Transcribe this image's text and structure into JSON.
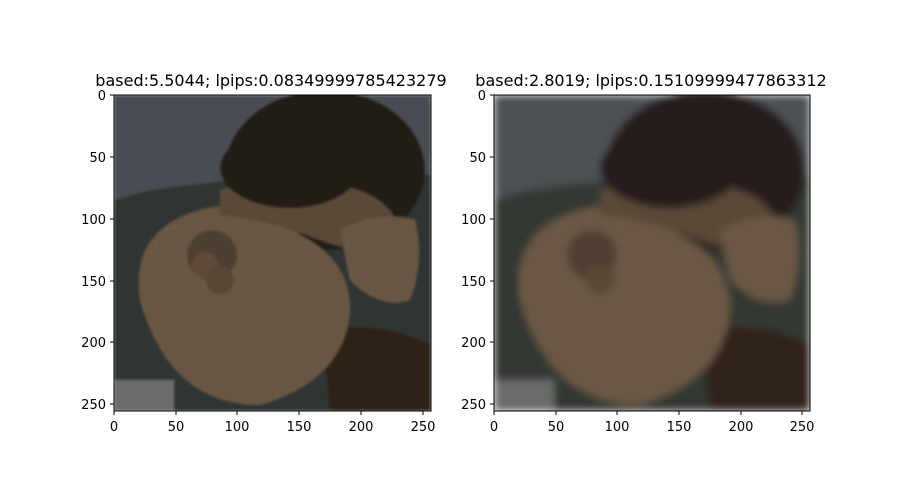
{
  "panels": [
    {
      "title": "based:5.5044; lpips:0.08349999785423279",
      "x_ticks": [
        "0",
        "50",
        "100",
        "150",
        "200",
        "250"
      ],
      "y_ticks": [
        "0",
        "50",
        "100",
        "150",
        "200",
        "250"
      ],
      "image_subject": "woman-wearing-straw-visor-hat",
      "sharpness": "sharp"
    },
    {
      "title": "based:2.8019; lpips:0.15109999477863312",
      "x_ticks": [
        "0",
        "50",
        "100",
        "150",
        "200",
        "250"
      ],
      "y_ticks": [
        "0",
        "50",
        "100",
        "150",
        "200",
        "250"
      ],
      "image_subject": "woman-wearing-straw-visor-hat",
      "sharpness": "blurred"
    }
  ],
  "colors": {
    "sky": "#4a4e53",
    "hills": "#2e3430",
    "straw": "#6b5844",
    "straw_dark": "#4d3f30",
    "hair": "#241c18",
    "frame": "#000000"
  }
}
